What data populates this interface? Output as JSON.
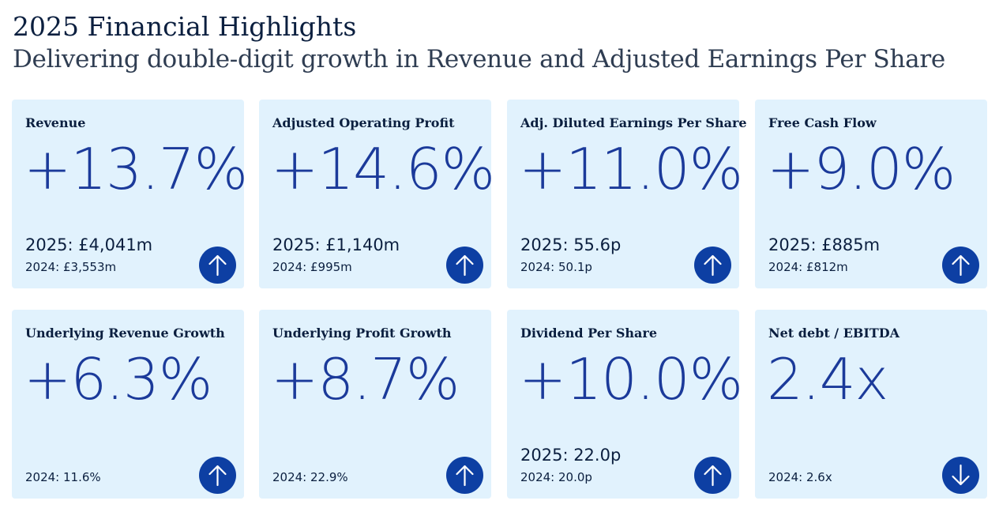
{
  "header": {
    "title": "2025 Financial Highlights",
    "subtitle": "Delivering double-digit growth in Revenue and Adjusted Earnings Per Share"
  },
  "colors": {
    "card_background": "#e1f2fd",
    "value_text": "#1b3a9a",
    "arrow_circle": "#0d3fa3"
  },
  "cards": [
    {
      "label": "Revenue",
      "value": "+13.7%",
      "current": "2025: £4,041m",
      "prior": "2024: £3,553m",
      "trend": "up",
      "icon": "arrow-up-icon"
    },
    {
      "label": "Adjusted Operating Profit",
      "value": "+14.6%",
      "current": "2025: £1,140m",
      "prior": "2024: £995m",
      "trend": "up",
      "icon": "arrow-up-icon"
    },
    {
      "label": "Adj. Diluted Earnings Per Share",
      "value": "+11.0%",
      "current": "2025: 55.6p",
      "prior": "2024: 50.1p",
      "trend": "up",
      "icon": "arrow-up-icon"
    },
    {
      "label": "Free Cash Flow",
      "value": "+9.0%",
      "current": "2025: £885m",
      "prior": "2024: £812m",
      "trend": "up",
      "icon": "arrow-up-icon"
    },
    {
      "label": "Underlying Revenue Growth",
      "value": "+6.3%",
      "current": "",
      "prior": "2024: 11.6%",
      "trend": "up",
      "icon": "arrow-up-icon"
    },
    {
      "label": "Underlying Profit Growth",
      "value": "+8.7%",
      "current": "",
      "prior": "2024: 22.9%",
      "trend": "up",
      "icon": "arrow-up-icon"
    },
    {
      "label": "Dividend Per Share",
      "value": "+10.0%",
      "current": "2025: 22.0p",
      "prior": "2024: 20.0p",
      "trend": "up",
      "icon": "arrow-up-icon"
    },
    {
      "label": "Net debt / EBITDA",
      "value": "2.4x",
      "current": "",
      "prior": "2024: 2.6x",
      "trend": "down",
      "icon": "arrow-down-icon"
    }
  ]
}
